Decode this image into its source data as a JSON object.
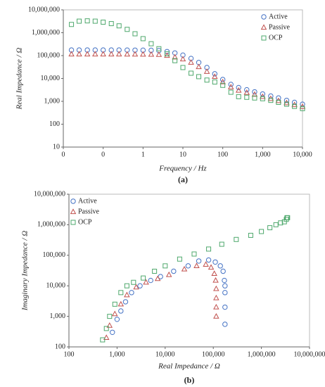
{
  "chart_data": [
    {
      "type": "scatter",
      "xlabel": "Frequency / Hz",
      "ylabel": "Real Impedance / Ω",
      "caption": "(a)",
      "xscale": "log",
      "yscale": "log",
      "legend": "upper right",
      "xlim": [
        0.01,
        10000
      ],
      "xticks": [
        {
          "value": 0.01,
          "label": "0"
        },
        {
          "value": 0.1,
          "label": "0"
        },
        1,
        10,
        100,
        {
          "value": 1000,
          "label": "1,000"
        },
        {
          "value": 10000,
          "label": "10,000"
        }
      ],
      "ylim": [
        10,
        10000000
      ],
      "yticks": [
        10,
        100,
        {
          "value": 1000,
          "label": "1,000"
        },
        {
          "value": 10000,
          "label": "10,000"
        },
        {
          "value": 100000,
          "label": "100,000"
        },
        {
          "value": 1000000,
          "label": "1,000,000"
        },
        {
          "value": 10000000,
          "label": "10,000,000"
        }
      ],
      "x": [
        0.016,
        0.025,
        0.04,
        0.063,
        0.1,
        0.16,
        0.25,
        0.4,
        0.63,
        1,
        1.6,
        2.5,
        4,
        6.3,
        10,
        16,
        25,
        40,
        63,
        100,
        160,
        250,
        400,
        630,
        1000,
        1600,
        2500,
        4000,
        6300,
        10000
      ],
      "series": [
        {
          "name": "Active",
          "marker": "circle",
          "color": "#4472c4",
          "values": [
            175000,
            175000,
            175000,
            175000,
            175000,
            175000,
            175000,
            174000,
            173000,
            172000,
            170000,
            165000,
            150000,
            130000,
            105000,
            75000,
            50000,
            30000,
            16000,
            9000,
            5500,
            4000,
            3200,
            2600,
            2100,
            1700,
            1400,
            1100,
            900,
            750
          ]
        },
        {
          "name": "Passive",
          "marker": "triangle",
          "color": "#c0504d",
          "values": [
            115000,
            115000,
            115000,
            115000,
            115000,
            115000,
            115000,
            114000,
            114000,
            113000,
            112000,
            110000,
            100000,
            85000,
            70000,
            50000,
            32000,
            20000,
            12000,
            7000,
            4200,
            3000,
            2400,
            2000,
            1600,
            1300,
            1050,
            850,
            700,
            580
          ]
        },
        {
          "name": "OCP",
          "marker": "square",
          "color": "#4ea86c",
          "values": [
            2300000,
            3200000,
            3300000,
            3200000,
            2900000,
            2500000,
            2000000,
            1400000,
            900000,
            550000,
            330000,
            200000,
            120000,
            60000,
            30000,
            17000,
            12000,
            8500,
            7000,
            5000,
            2500,
            1600,
            1500,
            1400,
            1300,
            1100,
            900,
            750,
            600,
            480
          ]
        }
      ]
    },
    {
      "type": "scatter",
      "xlabel": "Real Impedance / Ω",
      "ylabel": "Imaginary Impedance / Ω",
      "caption": "(b)",
      "xscale": "log",
      "yscale": "log",
      "legend": "upper left",
      "xlim": [
        100,
        10000000
      ],
      "xticks": [
        100,
        {
          "value": 1000,
          "label": "1,000"
        },
        {
          "value": 10000,
          "label": "10,000"
        },
        {
          "value": 100000,
          "label": "100,000"
        },
        {
          "value": 1000000,
          "label": "1,000,000"
        },
        {
          "value": 10000000,
          "label": "10,000,000"
        }
      ],
      "ylim": [
        100,
        10000000
      ],
      "yticks": [
        100,
        {
          "value": 1000,
          "label": "1,000"
        },
        {
          "value": 10000,
          "label": "10,000"
        },
        {
          "value": 100000,
          "label": "100,000"
        },
        {
          "value": 1000000,
          "label": "1,000,000"
        },
        {
          "value": 10000000,
          "label": "10,000,000"
        }
      ],
      "series": [
        {
          "name": "Active",
          "marker": "circle",
          "color": "#4472c4",
          "x": [
            800,
            1000,
            1200,
            1500,
            2000,
            3000,
            5000,
            8000,
            15000,
            30000,
            50000,
            80000,
            110000,
            140000,
            160000,
            170000,
            175000,
            175000,
            175000,
            175000
          ],
          "values": [
            300,
            800,
            1500,
            3000,
            6000,
            10000,
            15000,
            20000,
            30000,
            45000,
            65000,
            70000,
            60000,
            45000,
            30000,
            15000,
            10000,
            6000,
            2000,
            550
          ]
        },
        {
          "name": "Passive",
          "marker": "triangle",
          "color": "#c0504d",
          "x": [
            600,
            700,
            900,
            1200,
            1600,
            2500,
            4000,
            7000,
            12000,
            25000,
            45000,
            70000,
            90000,
            105000,
            112000,
            115000,
            115000,
            115000,
            115000
          ],
          "values": [
            200,
            500,
            1200,
            2500,
            5000,
            9000,
            13000,
            17000,
            23000,
            35000,
            45000,
            50000,
            40000,
            25000,
            15000,
            8000,
            4000,
            2000,
            1000
          ]
        },
        {
          "name": "OCP",
          "marker": "square",
          "color": "#4ea86c",
          "x": [
            500,
            600,
            700,
            900,
            1200,
            1600,
            2200,
            3500,
            6000,
            10000,
            20000,
            40000,
            80000,
            150000,
            300000,
            600000,
            1000000,
            1500000,
            2000000,
            2500000,
            3000000,
            3300000,
            3400000,
            3500000
          ],
          "values": [
            170,
            400,
            1000,
            2500,
            6000,
            10000,
            13000,
            18000,
            30000,
            45000,
            75000,
            110000,
            160000,
            230000,
            330000,
            450000,
            600000,
            800000,
            1000000,
            1150000,
            1250000,
            1500000,
            1700000,
            1700000
          ]
        }
      ]
    }
  ]
}
